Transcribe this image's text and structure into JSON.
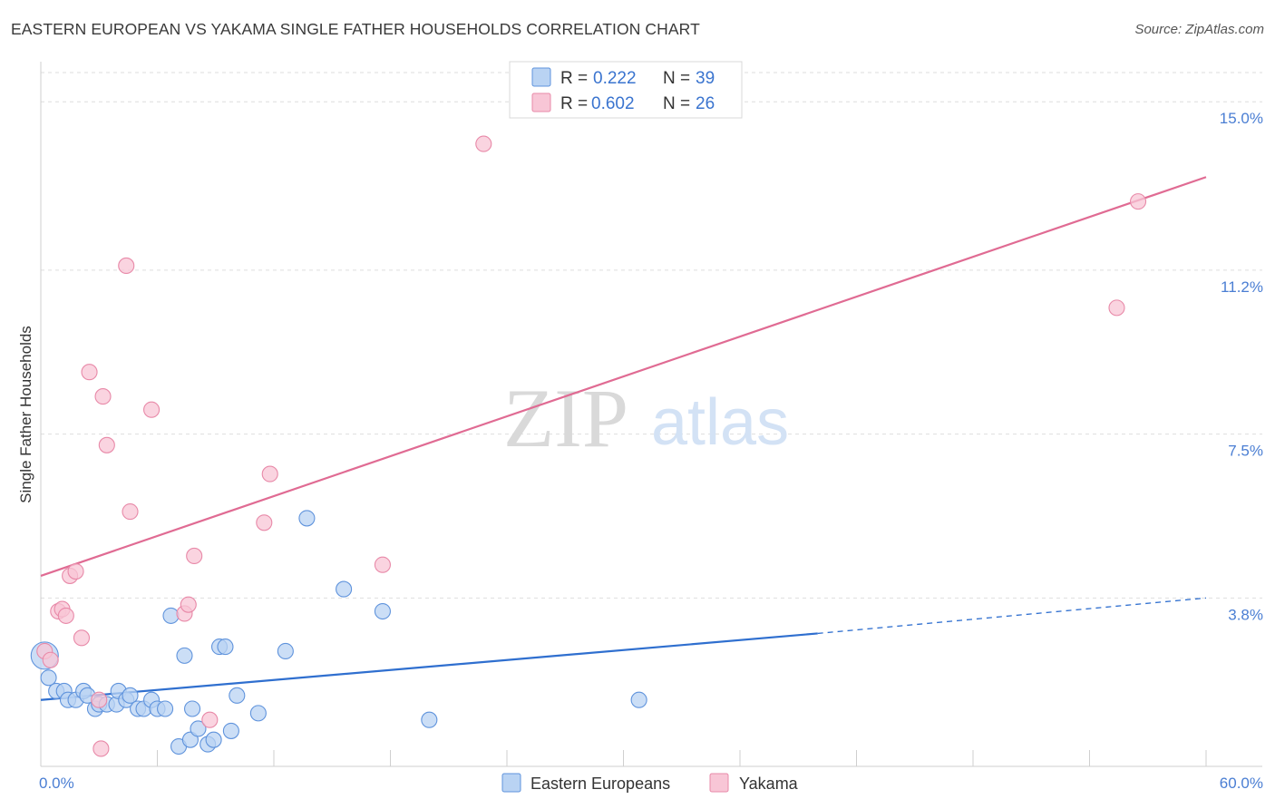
{
  "header": {
    "title": "EASTERN EUROPEAN VS YAKAMA SINGLE FATHER HOUSEHOLDS CORRELATION CHART",
    "source": "Source: ZipAtlas.com"
  },
  "watermark": {
    "zip": "ZIP",
    "atlas": "atlas"
  },
  "legend_top": {
    "r_label": "R =",
    "n_label": "N =",
    "rows": [
      {
        "r": "0.222",
        "n": "39"
      },
      {
        "r": "0.602",
        "n": "26"
      }
    ]
  },
  "colors": {
    "blue_fill": "#b9d3f3",
    "blue_stroke": "#5f93dc",
    "blue_line": "#2f6fcf",
    "pink_fill": "#f8c6d6",
    "pink_stroke": "#e889a8",
    "pink_line": "#e06b93",
    "grid": "#dedede",
    "axis_label": "#4a7ed3"
  },
  "chart_data": {
    "type": "scatter",
    "title": "EASTERN EUROPEAN VS YAKAMA SINGLE FATHER HOUSEHOLDS CORRELATION CHART",
    "ylabel": "Single Father Households",
    "xlabel": "",
    "xlim": [
      0,
      60
    ],
    "ylim": [
      0,
      15.7
    ],
    "x_tick_labels": [
      "0.0%",
      "60.0%"
    ],
    "y_tick_labels": [
      "3.8%",
      "7.5%",
      "11.2%",
      "15.0%"
    ],
    "y_ticks": [
      3.8,
      7.5,
      11.2,
      15.0
    ],
    "grid": true,
    "legend_position": "top-center",
    "series": [
      {
        "name": "Eastern Europeans",
        "r": 0.222,
        "n": 39,
        "trend": {
          "x0": 0,
          "y0": 1.5,
          "x1": 40,
          "y1": 3.0,
          "dashed_to_x": 60,
          "dashed_to_y": 3.8
        },
        "points": [
          [
            0.2,
            2.5,
            "large"
          ],
          [
            0.4,
            2.0
          ],
          [
            0.8,
            1.7
          ],
          [
            1.2,
            1.7
          ],
          [
            1.4,
            1.5
          ],
          [
            1.8,
            1.5
          ],
          [
            2.2,
            1.7
          ],
          [
            2.4,
            1.6
          ],
          [
            2.8,
            1.3
          ],
          [
            3.0,
            1.4
          ],
          [
            3.4,
            1.4
          ],
          [
            3.9,
            1.4
          ],
          [
            4.0,
            1.7
          ],
          [
            4.4,
            1.5
          ],
          [
            4.6,
            1.6
          ],
          [
            5.0,
            1.3
          ],
          [
            5.3,
            1.3
          ],
          [
            5.7,
            1.5
          ],
          [
            6.0,
            1.3
          ],
          [
            6.4,
            1.3
          ],
          [
            6.7,
            3.4
          ],
          [
            7.1,
            0.45
          ],
          [
            7.4,
            2.5
          ],
          [
            7.7,
            0.6
          ],
          [
            7.8,
            1.3
          ],
          [
            8.1,
            0.85
          ],
          [
            8.6,
            0.5
          ],
          [
            8.9,
            0.6
          ],
          [
            9.2,
            2.7
          ],
          [
            9.5,
            2.7
          ],
          [
            9.8,
            0.8
          ],
          [
            10.1,
            1.6
          ],
          [
            11.2,
            1.2
          ],
          [
            12.6,
            2.6
          ],
          [
            13.7,
            5.6
          ],
          [
            15.6,
            4.0
          ],
          [
            17.6,
            3.5
          ],
          [
            20.0,
            1.05
          ],
          [
            30.8,
            1.5
          ]
        ]
      },
      {
        "name": "Yakama",
        "r": 0.602,
        "n": 26,
        "trend": {
          "x0": 0,
          "y0": 4.3,
          "x1": 60,
          "y1": 13.3
        },
        "points": [
          [
            0.2,
            2.6
          ],
          [
            0.5,
            2.4
          ],
          [
            0.9,
            3.5
          ],
          [
            1.1,
            3.55
          ],
          [
            1.3,
            3.4
          ],
          [
            1.5,
            4.3
          ],
          [
            1.8,
            4.4
          ],
          [
            2.1,
            2.9
          ],
          [
            2.5,
            8.9
          ],
          [
            3.2,
            8.35
          ],
          [
            3.4,
            7.25
          ],
          [
            3.0,
            1.5
          ],
          [
            3.1,
            0.4
          ],
          [
            4.4,
            11.3
          ],
          [
            4.6,
            5.75
          ],
          [
            5.7,
            8.05
          ],
          [
            7.4,
            3.45
          ],
          [
            7.6,
            3.65
          ],
          [
            7.9,
            4.75
          ],
          [
            8.7,
            1.05
          ],
          [
            11.5,
            5.5
          ],
          [
            11.8,
            6.6
          ],
          [
            17.6,
            4.55
          ],
          [
            22.8,
            14.05
          ],
          [
            55.4,
            10.35
          ],
          [
            56.5,
            12.75
          ]
        ]
      }
    ]
  }
}
